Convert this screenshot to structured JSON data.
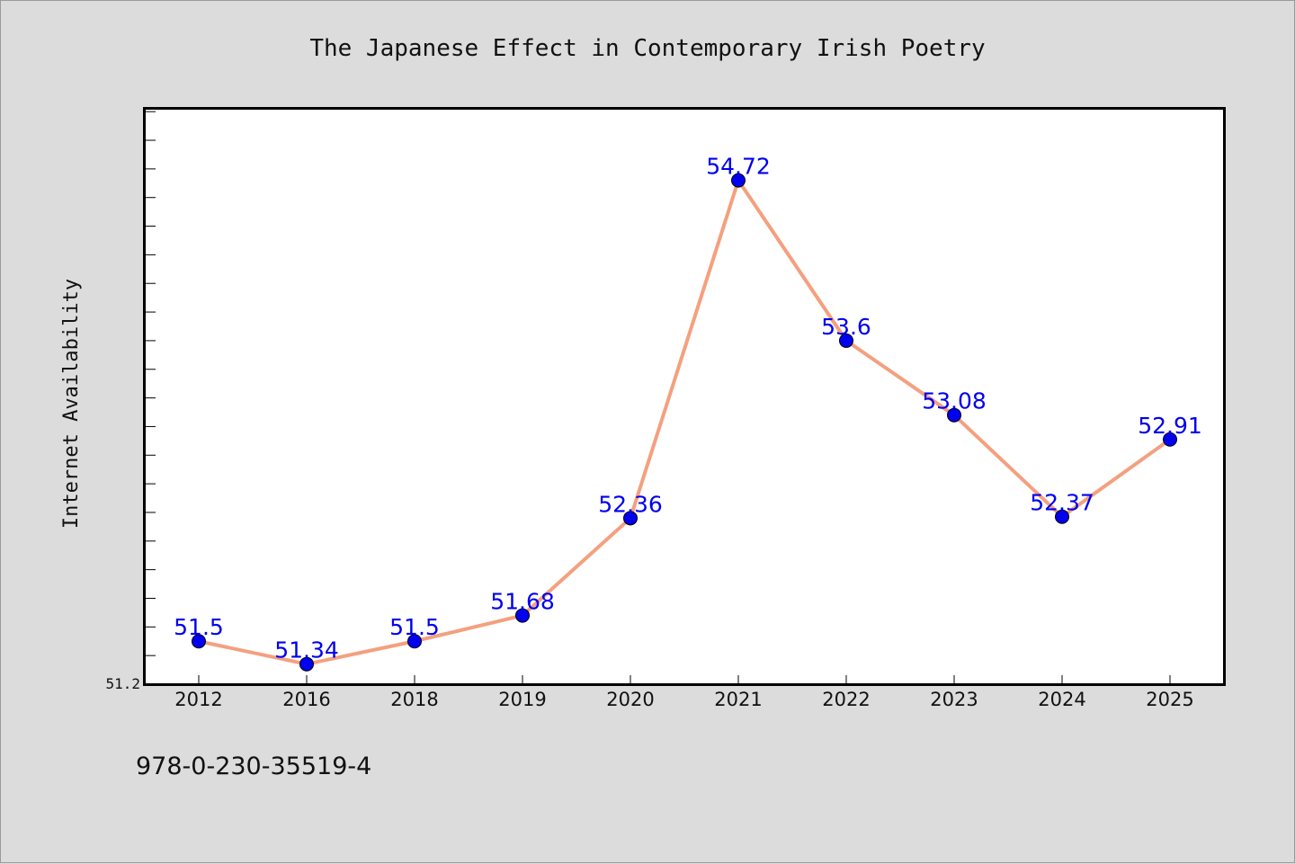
{
  "chart_data": {
    "type": "line",
    "title": "The Japanese Effect in Contemporary Irish Poetry",
    "xlabel": "",
    "ylabel": "Internet Availability",
    "categories": [
      "2012",
      "2016",
      "2018",
      "2019",
      "2020",
      "2021",
      "2022",
      "2023",
      "2024",
      "2025"
    ],
    "series": [
      {
        "values": [
          51.5,
          51.34,
          51.5,
          51.68,
          52.36,
          54.72,
          53.6,
          53.08,
          52.37,
          52.91
        ],
        "labels": [
          "51.5",
          "51.34",
          "51.5",
          "51.68",
          "52.36",
          "54.72",
          "53.6",
          "53.08",
          "52.37",
          "52.91"
        ],
        "line_color": "#f4a07f",
        "marker_color": "#0000ee",
        "label_color": "#0000ee"
      }
    ],
    "ylim": [
      51.2,
      55.22
    ],
    "y_tick_labels": [
      "51.2"
    ],
    "grid": false,
    "legend": "none"
  },
  "footer": {
    "isbn": "978-0-230-35519-4"
  },
  "colors": {
    "background": "#dcdcdc",
    "plot_background": "#ffffff",
    "axis": "#000000"
  }
}
